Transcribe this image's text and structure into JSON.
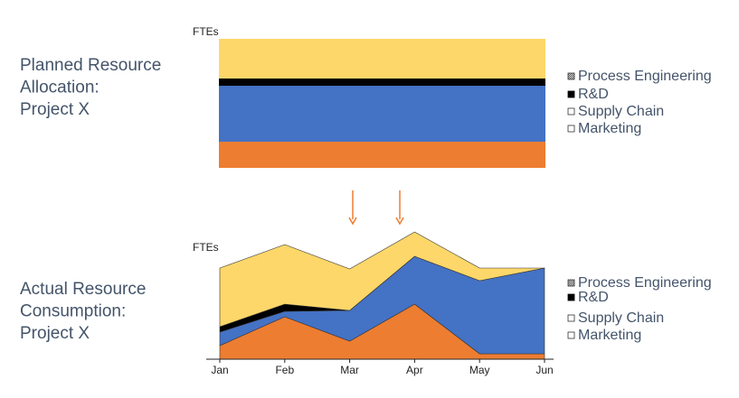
{
  "chart_data": [
    {
      "type": "stacked_bar",
      "title_lines": [
        "Planned Resource",
        "Allocation:",
        "Project X"
      ],
      "y_label": "FTEs",
      "categories": [
        null
      ],
      "ylim": [
        0,
        14.3
      ],
      "series": [
        {
          "name": "Marketing",
          "color": "#ed7d31",
          "values": [
            2.9
          ]
        },
        {
          "name": "Supply Chain",
          "color": "#4472c4",
          "values": [
            6.2
          ]
        },
        {
          "name": "R&D",
          "color": "#000000",
          "values": [
            0.8
          ]
        },
        {
          "name": "Process Engineering",
          "color": "#fdd76a",
          "values": [
            4.4
          ]
        }
      ]
    },
    {
      "type": "stacked_area",
      "title_lines": [
        "Actual Resource",
        "Consumption:",
        "Project X"
      ],
      "y_label": "FTEs",
      "categories": [
        "Jan",
        "Feb",
        "Mar",
        "Apr",
        "May",
        "Jun"
      ],
      "ylim": [
        0,
        14.3
      ],
      "series": [
        {
          "name": "Marketing",
          "color": "#ed7d31",
          "values": [
            1.5,
            4.7,
            2.0,
            6.1,
            0.6,
            0.6
          ]
        },
        {
          "name": "Supply Chain",
          "color": "#4472c4",
          "values": [
            1.5,
            0.6,
            3.4,
            5.3,
            8.1,
            9.5
          ]
        },
        {
          "name": "R&D",
          "color": "#000000",
          "values": [
            0.6,
            0.8,
            0,
            0,
            0,
            0
          ]
        },
        {
          "name": "Process Engineering",
          "color": "#fdd76a",
          "values": [
            6.5,
            6.6,
            4.6,
            2.7,
            1.4,
            0
          ]
        }
      ]
    }
  ]
}
